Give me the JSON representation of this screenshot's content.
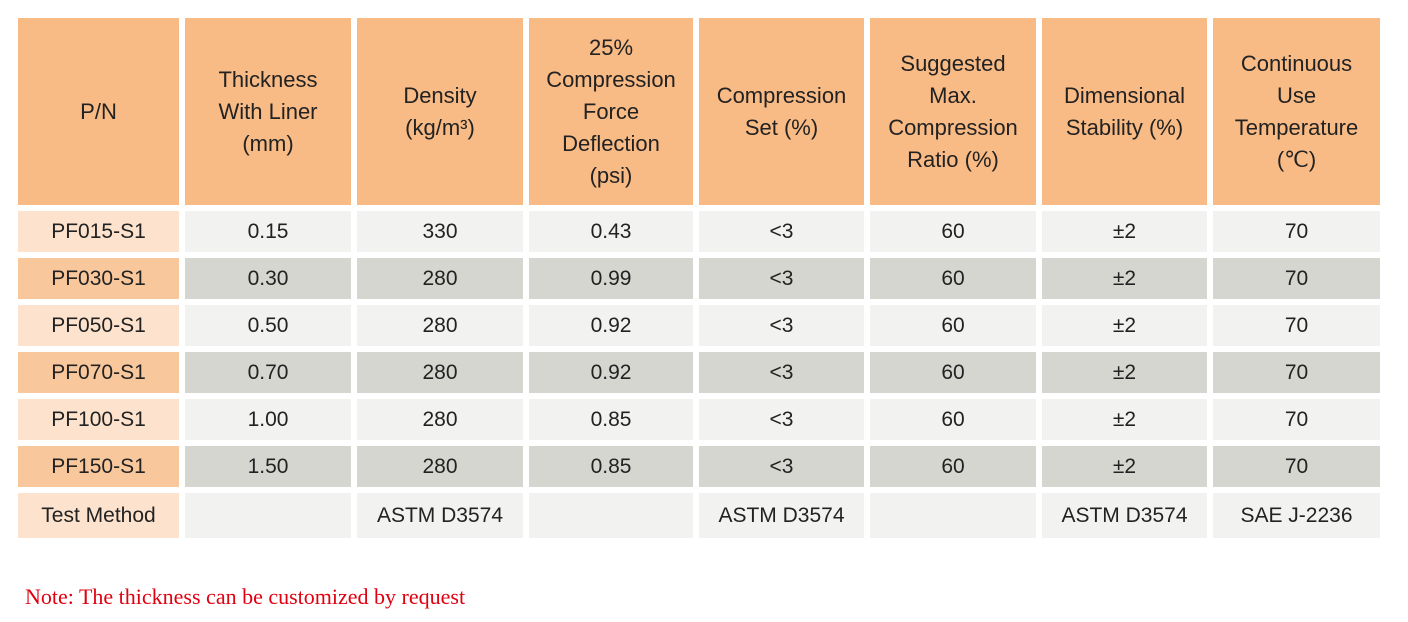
{
  "table": {
    "header": [
      [
        "P/N"
      ],
      [
        "Thickness",
        "With Liner",
        "(mm)"
      ],
      [
        "Density",
        "(kg/m³)"
      ],
      [
        "25%",
        "Compression",
        "Force",
        "Deflection",
        "(psi)"
      ],
      [
        "Compression",
        "Set (%)"
      ],
      [
        "Suggested",
        "Max.",
        "Compression",
        "Ratio (%)"
      ],
      [
        "Dimensional",
        "Stability (%)"
      ],
      [
        "Continuous",
        "Use",
        "Temperature",
        "(℃)"
      ]
    ],
    "rows": [
      [
        "PF015-S1",
        "0.15",
        "330",
        "0.43",
        "<3",
        "60",
        "±2",
        "70"
      ],
      [
        "PF030-S1",
        "0.30",
        "280",
        "0.99",
        "<3",
        "60",
        "±2",
        "70"
      ],
      [
        "PF050-S1",
        "0.50",
        "280",
        "0.92",
        "<3",
        "60",
        "±2",
        "70"
      ],
      [
        "PF070-S1",
        "0.70",
        "280",
        "0.92",
        "<3",
        "60",
        "±2",
        "70"
      ],
      [
        "PF100-S1",
        "1.00",
        "280",
        "0.85",
        "<3",
        "60",
        "±2",
        "70"
      ],
      [
        "PF150-S1",
        "1.50",
        "280",
        "0.85",
        "<3",
        "60",
        "±2",
        "70"
      ],
      [
        "Test Method",
        null,
        "ASTM D3574",
        null,
        "ASTM D3574",
        null,
        "ASTM D3574",
        "SAE J-2236"
      ]
    ]
  },
  "note": "Note: The thickness can be customized by request"
}
